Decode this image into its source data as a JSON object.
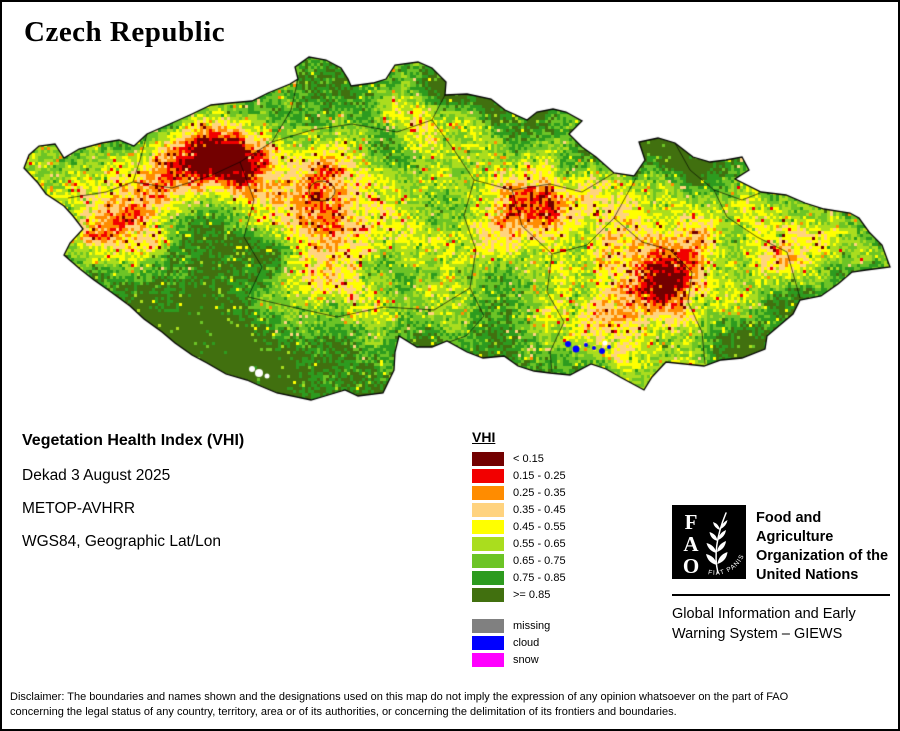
{
  "title": "Czech Republic",
  "info": {
    "index_name": "Vegetation Health Index (VHI)",
    "dekad": "Dekad 3 August 2025",
    "sensor": "METOP-AVHRR",
    "projection": "WGS84, Geographic Lat/Lon"
  },
  "legend": {
    "title": "VHI",
    "classes": [
      {
        "label": "< 0.15",
        "color": "#730000"
      },
      {
        "label": "0.15 - 0.25",
        "color": "#f20000"
      },
      {
        "label": "0.25 - 0.35",
        "color": "#ff8c00"
      },
      {
        "label": "0.35 - 0.45",
        "color": "#ffd37f"
      },
      {
        "label": "0.45 - 0.55",
        "color": "#ffff00"
      },
      {
        "label": "0.55 - 0.65",
        "color": "#aadd1e"
      },
      {
        "label": "0.65 - 0.75",
        "color": "#6cc426"
      },
      {
        "label": "0.75 - 0.85",
        "color": "#2d9b1f"
      },
      {
        "label": ">= 0.85",
        "color": "#41700f"
      }
    ],
    "extras": [
      {
        "label": "missing",
        "color": "#808080"
      },
      {
        "label": "cloud",
        "color": "#0000ff"
      },
      {
        "label": "snow",
        "color": "#ff00ff"
      }
    ]
  },
  "fao": {
    "logo_letters": [
      "F",
      "A",
      "O"
    ],
    "logo_motto": "FIAT PANIS",
    "name_lines": [
      "Food and Agriculture",
      "Organization of the",
      "United Nations"
    ],
    "giews_lines": [
      "Global Information and Early",
      "Warning System – GIEWS"
    ]
  },
  "disclaimer": {
    "line1": "Disclaimer: The boundaries and names shown and the designations used on this map do not imply the expression of any opinion whatsoever on the part of FAO",
    "line2": "concerning the legal status of any country, territory, area or of its authorities, or concerning the delimitation of its frontiers and boundaries."
  }
}
